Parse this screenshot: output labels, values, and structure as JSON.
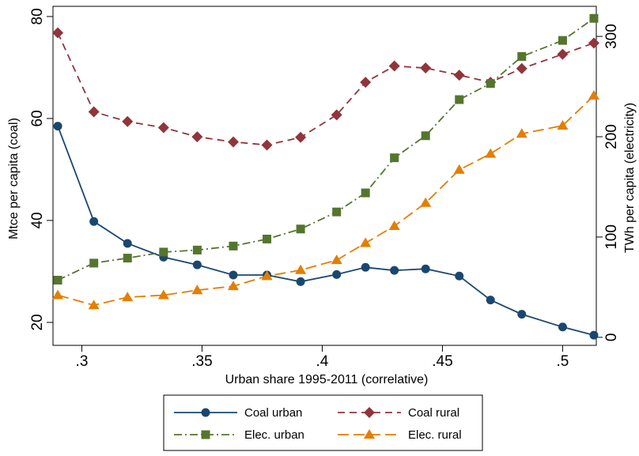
{
  "chart_data": {
    "type": "line",
    "xlabel": "Urban share 1995-2011 (correlative)",
    "ylabel": "Mtce per capita (coal)",
    "y2label": "TWh per capita (electricity)",
    "xlim": [
      0.288,
      0.514
    ],
    "ylim": [
      15.5,
      82
    ],
    "y2lim": [
      -8,
      330
    ],
    "xticks": [
      0.3,
      0.35,
      0.4,
      0.45,
      0.5
    ],
    "xtick_labels": [
      ".3",
      ".35",
      ".4",
      ".45",
      ".5"
    ],
    "yticks": [
      20,
      40,
      60,
      80
    ],
    "ytick_labels": [
      "20",
      "40",
      "60",
      "80"
    ],
    "y2ticks": [
      0,
      100,
      200,
      300
    ],
    "y2tick_labels": [
      "0",
      "100",
      "200",
      "300"
    ],
    "grid": false,
    "legend_position": "bottom",
    "x": [
      0.29,
      0.305,
      0.319,
      0.334,
      0.348,
      0.363,
      0.377,
      0.391,
      0.406,
      0.418,
      0.43,
      0.443,
      0.457,
      0.47,
      0.483,
      0.5,
      0.513
    ],
    "series": [
      {
        "name": "Coal urban",
        "axis": "left",
        "color": "#1a476f",
        "marker": "circle",
        "dash": "solid",
        "values": [
          58.5,
          39.8,
          35.5,
          32.8,
          31.3,
          29.3,
          29.3,
          28.0,
          29.4,
          30.8,
          30.2,
          30.5,
          29.1,
          24.4,
          21.6,
          19.1,
          17.5
        ]
      },
      {
        "name": "Coal rural",
        "axis": "left",
        "color": "#90353b",
        "marker": "diamond",
        "dash": "dash",
        "values": [
          76.8,
          61.3,
          59.4,
          58.2,
          56.4,
          55.4,
          54.8,
          56.3,
          60.7,
          67.1,
          70.3,
          69.9,
          68.5,
          67.1,
          69.8,
          72.6,
          74.8
        ]
      },
      {
        "name": "Elec. urban",
        "axis": "right",
        "color": "#55752f",
        "marker": "square",
        "dash": "dashdot",
        "values": [
          57,
          74,
          79,
          85,
          87,
          91,
          98,
          108,
          125,
          144,
          179,
          201,
          237,
          253,
          280,
          296,
          318
        ]
      },
      {
        "name": "Elec. rural",
        "axis": "right",
        "color": "#e37e00",
        "marker": "triangle",
        "dash": "longdash",
        "values": [
          42,
          32,
          40,
          42,
          47,
          51,
          61,
          67,
          77,
          94,
          111,
          134,
          167,
          183,
          203,
          211,
          241
        ]
      }
    ]
  }
}
